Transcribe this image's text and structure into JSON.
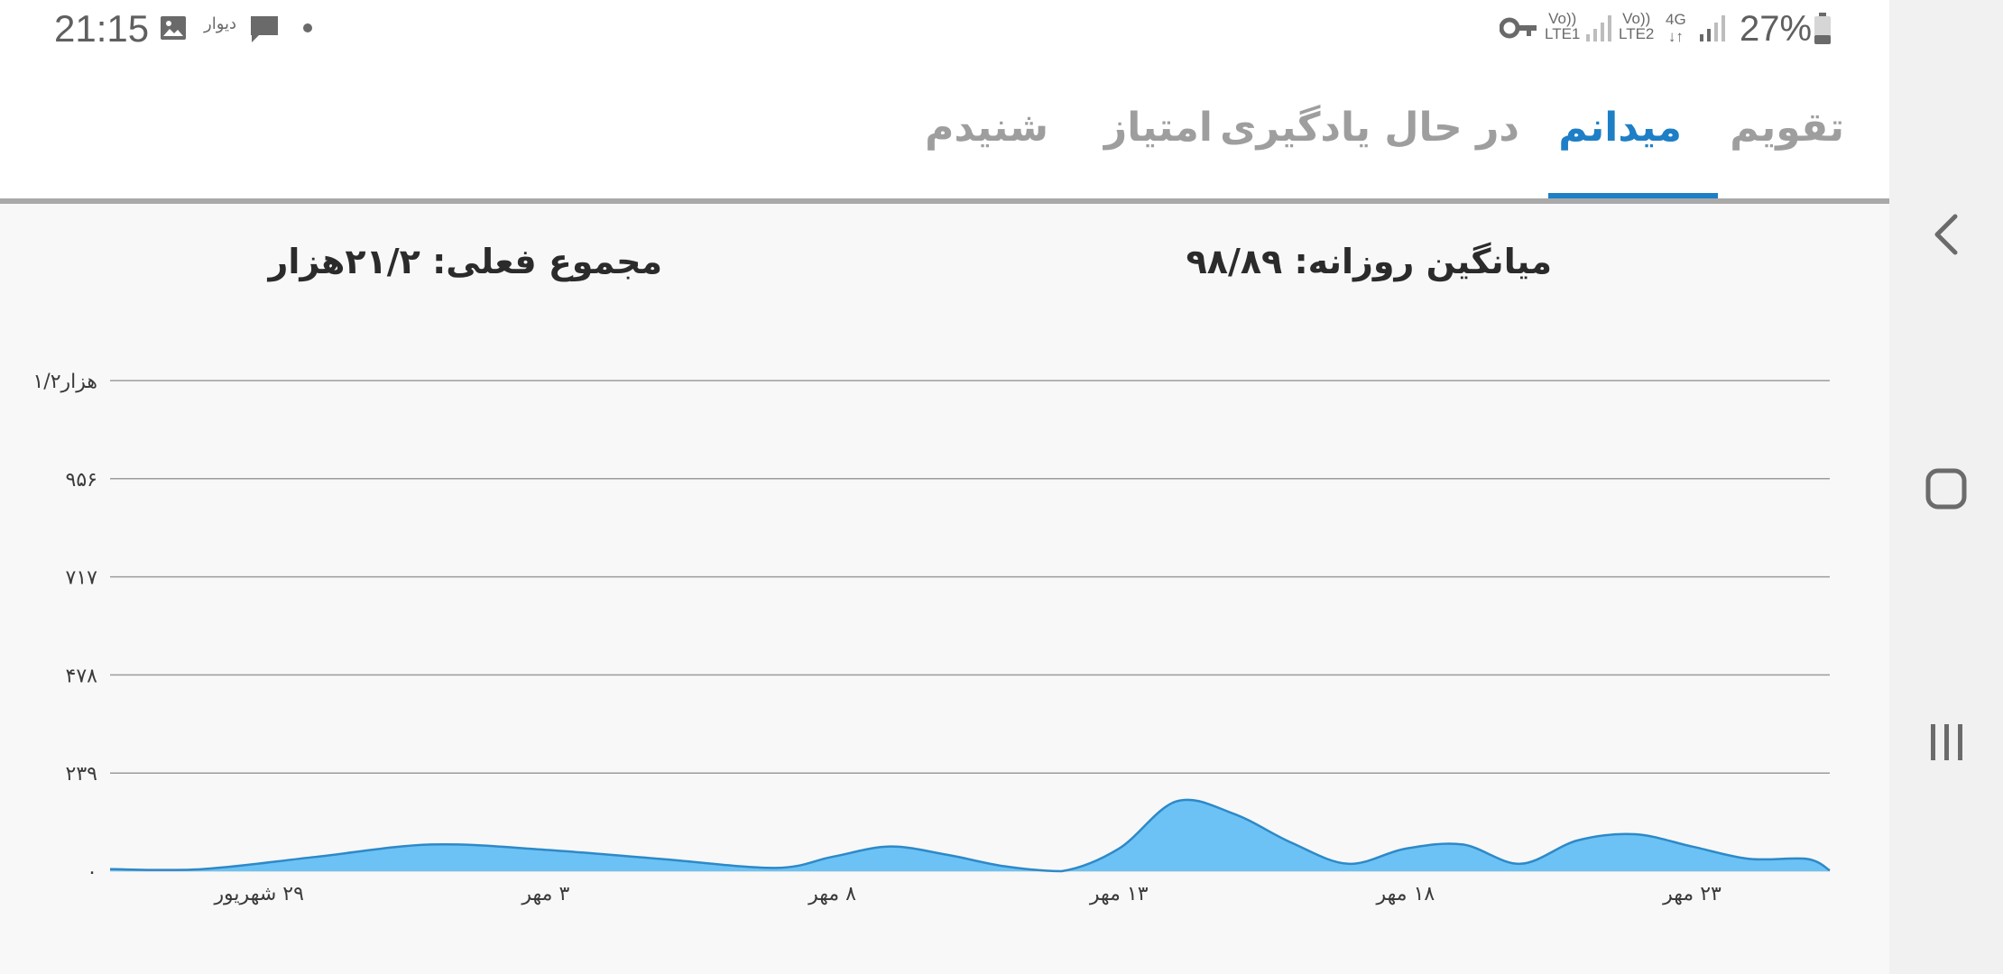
{
  "status_bar": {
    "time": "21:15",
    "notification_app": "دیوار",
    "sim1": "Vo))\nLTE1",
    "sim2": "Vo))\nLTE2",
    "network": "4G",
    "battery": "27%",
    "icons": [
      "image-icon",
      "chat-bubble-icon",
      "dot-icon",
      "vpn-key-icon",
      "signal-icon",
      "battery-icon"
    ]
  },
  "tabs": [
    {
      "label": "تقویم",
      "active": false
    },
    {
      "label": "میدانم",
      "active": true
    },
    {
      "label": "در حال یادگیری",
      "active": false
    },
    {
      "label": "امتیاز",
      "active": false
    },
    {
      "label": "شنیدم",
      "active": false
    }
  ],
  "stats": {
    "daily_average": "میانگین روزانه: ۹۸/۸۹",
    "current_total": "مجموع فعلی: ۲۱/۲هزار"
  },
  "chart_data": {
    "type": "area",
    "y_ticks": [
      "۰",
      "۲۳۹",
      "۴۷۸",
      "۷۱۷",
      "۹۵۶",
      "۱/۲هزار"
    ],
    "ylim": [
      0,
      1195
    ],
    "x_tick_labels": [
      {
        "label": "۲۹ شهریور",
        "day": 2
      },
      {
        "label": "۳ مهر",
        "day": 7
      },
      {
        "label": "۸ مهر",
        "day": 12
      },
      {
        "label": "۱۳ مهر",
        "day": 17
      },
      {
        "label": "۱۸ مهر",
        "day": 22
      },
      {
        "label": "۲۳ مهر",
        "day": 27
      }
    ],
    "x": [
      -0.6,
      1,
      3,
      5,
      7,
      9,
      11,
      12,
      13,
      14,
      15,
      16,
      17,
      18,
      19,
      20,
      21,
      22,
      23,
      24,
      25,
      26,
      27,
      28,
      29,
      29.4
    ],
    "values": [
      5,
      5,
      35,
      65,
      52,
      30,
      8,
      35,
      60,
      40,
      12,
      0,
      55,
      170,
      140,
      70,
      18,
      55,
      65,
      18,
      75,
      90,
      60,
      30,
      30,
      2
    ],
    "grid": true,
    "color": "#6cc2f4",
    "line_color": "#2d89c8"
  },
  "nav_bar": {
    "buttons": [
      "back-icon",
      "home-icon",
      "recents-icon"
    ]
  }
}
